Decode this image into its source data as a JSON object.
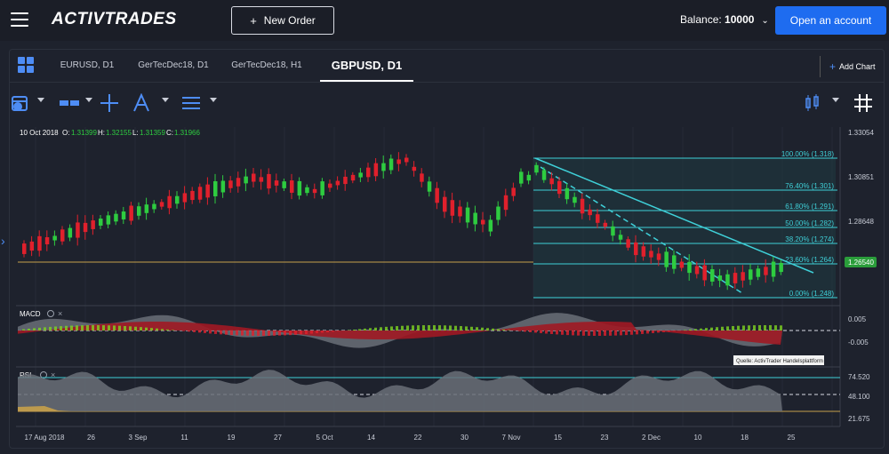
{
  "header": {
    "logo_text": "ACTIVTRADES",
    "new_order_label": "New Order",
    "balance_label": "Balance:",
    "balance_value": "10000",
    "open_account_label": "Open an account"
  },
  "tabs": [
    {
      "label": "EURUSD, D1"
    },
    {
      "label": "GerTecDec18, D1"
    },
    {
      "label": "GerTecDec18, H1"
    },
    {
      "label": "GBPUSD, D1"
    }
  ],
  "add_chart_label": "Add Chart",
  "ohlc": {
    "date": "10 Oct 2018",
    "o_label": "O:",
    "o": "1.31399",
    "h_label": "H:",
    "h": "1.32155",
    "l_label": "L:",
    "l": "1.31359",
    "c_label": "C:",
    "c": "1.31966"
  },
  "chart_data": {
    "type": "candlestick",
    "price_ticks": [
      "1.33054",
      "1.30851",
      "1.28648",
      "1.26540"
    ],
    "current_price": "1.26540",
    "fib_levels": [
      "100.00% (1.318)",
      "76.40% (1.301)",
      "61.80% (1.291)",
      "50.00% (1.282)",
      "38.20% (1.274)",
      "23.60% (1.264)",
      "0.00% (1.248)"
    ],
    "x_ticks": [
      "17 Aug 2018",
      "26",
      "3 Sep",
      "11",
      "19",
      "27",
      "5 Oct",
      "14",
      "22",
      "30",
      "7 Nov",
      "15",
      "23",
      "2 Dec",
      "10",
      "18",
      "25"
    ],
    "macd_label": "MACD",
    "macd_ticks": [
      "0.005",
      "-0.005"
    ],
    "rsi_label": "RSI",
    "rsi_ticks": [
      "74.520",
      "48.100",
      "21.675"
    ],
    "source_note": "Quelle: ActivTrader Handelsplattform"
  },
  "colors": {
    "up": "#2ecc40",
    "down": "#e0202c",
    "fib": "#3fd0d8",
    "accent": "#1e6cf0"
  }
}
